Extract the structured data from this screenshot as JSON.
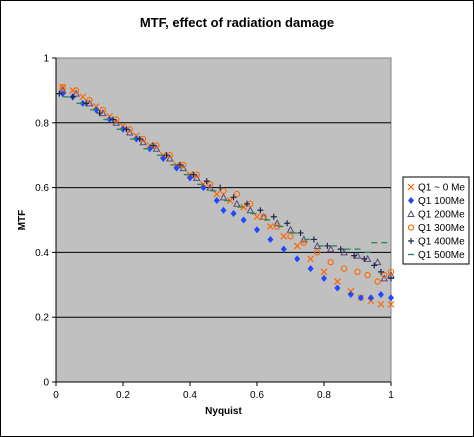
{
  "chart_data": {
    "type": "scatter",
    "title": "MTF, effect of radiation damage",
    "xlabel": "Nyquist",
    "ylabel": "MTF",
    "xlim": [
      0,
      1
    ],
    "ylim": [
      0,
      1
    ],
    "x_ticks": [
      "0",
      "0.2",
      "0.4",
      "0.6",
      "0.8",
      "1"
    ],
    "y_ticks": [
      "0",
      "0.2",
      "0.4",
      "0.6",
      "0.8",
      "1"
    ],
    "grid": "horizontal",
    "plot_background": "#c0c0c0",
    "legend_position": "right",
    "series": [
      {
        "name": "Q1 ~ 0 Me",
        "marker": "x",
        "color": "#ff6600",
        "points": [
          [
            0.02,
            0.91
          ],
          [
            0.05,
            0.9
          ],
          [
            0.08,
            0.88
          ],
          [
            0.12,
            0.85
          ],
          [
            0.16,
            0.82
          ],
          [
            0.2,
            0.79
          ],
          [
            0.24,
            0.76
          ],
          [
            0.28,
            0.73
          ],
          [
            0.32,
            0.7
          ],
          [
            0.36,
            0.67
          ],
          [
            0.4,
            0.64
          ],
          [
            0.44,
            0.61
          ],
          [
            0.48,
            0.58
          ],
          [
            0.52,
            0.56
          ],
          [
            0.56,
            0.54
          ],
          [
            0.6,
            0.51
          ],
          [
            0.64,
            0.48
          ],
          [
            0.68,
            0.45
          ],
          [
            0.72,
            0.42
          ],
          [
            0.76,
            0.38
          ],
          [
            0.8,
            0.34
          ],
          [
            0.84,
            0.31
          ],
          [
            0.88,
            0.28
          ],
          [
            0.91,
            0.26
          ],
          [
            0.94,
            0.25
          ],
          [
            0.97,
            0.24
          ],
          [
            1.0,
            0.24
          ]
        ]
      },
      {
        "name": "Q1 100Me",
        "marker": "diamond",
        "color": "#1f49ff",
        "points": [
          [
            0.02,
            0.89
          ],
          [
            0.05,
            0.88
          ],
          [
            0.08,
            0.86
          ],
          [
            0.12,
            0.84
          ],
          [
            0.16,
            0.81
          ],
          [
            0.2,
            0.78
          ],
          [
            0.24,
            0.75
          ],
          [
            0.28,
            0.72
          ],
          [
            0.32,
            0.69
          ],
          [
            0.36,
            0.66
          ],
          [
            0.4,
            0.63
          ],
          [
            0.44,
            0.6
          ],
          [
            0.48,
            0.56
          ],
          [
            0.5,
            0.53
          ],
          [
            0.53,
            0.52
          ],
          [
            0.56,
            0.5
          ],
          [
            0.6,
            0.47
          ],
          [
            0.64,
            0.44
          ],
          [
            0.68,
            0.41
          ],
          [
            0.72,
            0.38
          ],
          [
            0.76,
            0.35
          ],
          [
            0.8,
            0.32
          ],
          [
            0.84,
            0.29
          ],
          [
            0.88,
            0.27
          ],
          [
            0.91,
            0.26
          ],
          [
            0.94,
            0.26
          ],
          [
            0.97,
            0.27
          ],
          [
            1.0,
            0.26
          ]
        ]
      },
      {
        "name": "Q1 200Me",
        "marker": "triangle",
        "color": "#5a4a7a",
        "points": [
          [
            0.02,
            0.9
          ],
          [
            0.06,
            0.89
          ],
          [
            0.1,
            0.86
          ],
          [
            0.14,
            0.83
          ],
          [
            0.18,
            0.8
          ],
          [
            0.22,
            0.77
          ],
          [
            0.26,
            0.74
          ],
          [
            0.3,
            0.72
          ],
          [
            0.34,
            0.69
          ],
          [
            0.38,
            0.66
          ],
          [
            0.42,
            0.63
          ],
          [
            0.46,
            0.6
          ],
          [
            0.5,
            0.57
          ],
          [
            0.54,
            0.55
          ],
          [
            0.58,
            0.53
          ],
          [
            0.62,
            0.51
          ],
          [
            0.66,
            0.49
          ],
          [
            0.7,
            0.47
          ],
          [
            0.74,
            0.44
          ],
          [
            0.78,
            0.42
          ],
          [
            0.82,
            0.41
          ],
          [
            0.86,
            0.4
          ],
          [
            0.9,
            0.39
          ],
          [
            0.93,
            0.38
          ],
          [
            0.96,
            0.37
          ],
          [
            0.98,
            0.32
          ],
          [
            1.0,
            0.33
          ]
        ]
      },
      {
        "name": "Q1 300Me",
        "marker": "circle",
        "color": "#ff6600",
        "points": [
          [
            0.02,
            0.91
          ],
          [
            0.06,
            0.9
          ],
          [
            0.1,
            0.87
          ],
          [
            0.14,
            0.84
          ],
          [
            0.18,
            0.81
          ],
          [
            0.22,
            0.78
          ],
          [
            0.26,
            0.75
          ],
          [
            0.3,
            0.73
          ],
          [
            0.34,
            0.7
          ],
          [
            0.38,
            0.67
          ],
          [
            0.42,
            0.64
          ],
          [
            0.46,
            0.61
          ],
          [
            0.5,
            0.59
          ],
          [
            0.54,
            0.58
          ],
          [
            0.58,
            0.55
          ],
          [
            0.62,
            0.51
          ],
          [
            0.66,
            0.48
          ],
          [
            0.7,
            0.45
          ],
          [
            0.74,
            0.43
          ],
          [
            0.78,
            0.4
          ],
          [
            0.82,
            0.37
          ],
          [
            0.86,
            0.35
          ],
          [
            0.9,
            0.34
          ],
          [
            0.93,
            0.33
          ],
          [
            0.96,
            0.31
          ],
          [
            0.98,
            0.33
          ],
          [
            1.0,
            0.34
          ]
        ]
      },
      {
        "name": "Q1 400Me",
        "marker": "plus",
        "color": "#1a2a4a",
        "points": [
          [
            0.01,
            0.89
          ],
          [
            0.05,
            0.88
          ],
          [
            0.09,
            0.86
          ],
          [
            0.13,
            0.83
          ],
          [
            0.17,
            0.81
          ],
          [
            0.21,
            0.78
          ],
          [
            0.25,
            0.75
          ],
          [
            0.29,
            0.73
          ],
          [
            0.33,
            0.7
          ],
          [
            0.37,
            0.67
          ],
          [
            0.41,
            0.64
          ],
          [
            0.45,
            0.62
          ],
          [
            0.49,
            0.6
          ],
          [
            0.53,
            0.57
          ],
          [
            0.57,
            0.55
          ],
          [
            0.61,
            0.53
          ],
          [
            0.65,
            0.51
          ],
          [
            0.69,
            0.49
          ],
          [
            0.73,
            0.46
          ],
          [
            0.77,
            0.44
          ],
          [
            0.81,
            0.42
          ],
          [
            0.85,
            0.41
          ],
          [
            0.89,
            0.39
          ],
          [
            0.92,
            0.38
          ],
          [
            0.95,
            0.36
          ],
          [
            0.97,
            0.34
          ],
          [
            1.0,
            0.32
          ]
        ]
      },
      {
        "name": "Q1 500Me",
        "marker": "dash",
        "color": "#2e8b57",
        "points": [
          [
            0.03,
            0.88
          ],
          [
            0.07,
            0.86
          ],
          [
            0.11,
            0.84
          ],
          [
            0.15,
            0.81
          ],
          [
            0.19,
            0.78
          ],
          [
            0.23,
            0.75
          ],
          [
            0.27,
            0.72
          ],
          [
            0.31,
            0.7
          ],
          [
            0.35,
            0.67
          ],
          [
            0.39,
            0.64
          ],
          [
            0.43,
            0.61
          ],
          [
            0.47,
            0.59
          ],
          [
            0.51,
            0.56
          ],
          [
            0.55,
            0.54
          ],
          [
            0.59,
            0.52
          ],
          [
            0.63,
            0.5
          ],
          [
            0.67,
            0.48
          ],
          [
            0.71,
            0.46
          ],
          [
            0.75,
            0.44
          ],
          [
            0.79,
            0.42
          ],
          [
            0.83,
            0.42
          ],
          [
            0.87,
            0.41
          ],
          [
            0.9,
            0.41
          ],
          [
            0.93,
            0.4
          ],
          [
            0.95,
            0.43
          ],
          [
            0.98,
            0.43
          ]
        ]
      }
    ]
  }
}
